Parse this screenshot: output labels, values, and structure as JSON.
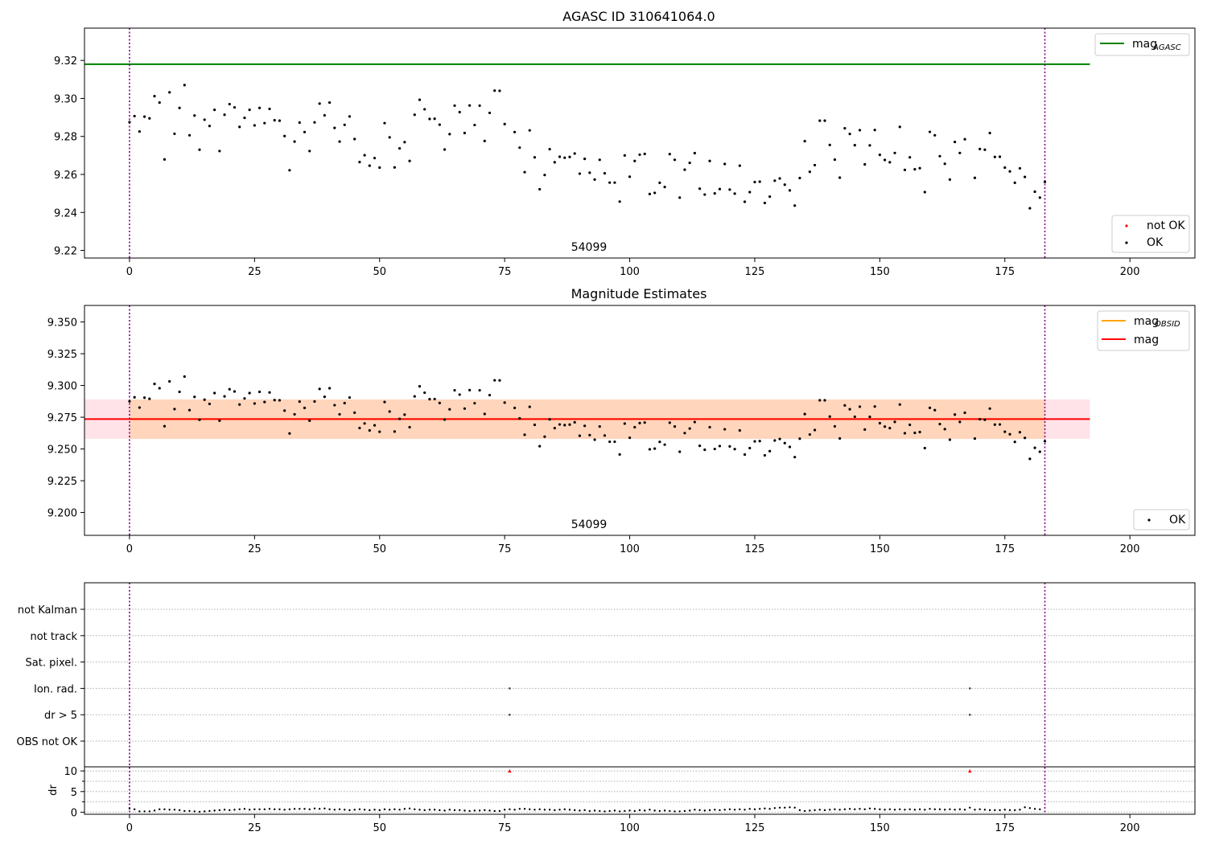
{
  "chart_data": [
    {
      "type": "scatter",
      "title": "AGASC ID 310641064.0",
      "xlim": [
        -9,
        213
      ],
      "ylim": [
        9.216,
        9.337
      ],
      "xticks": [
        0,
        25,
        50,
        75,
        100,
        125,
        150,
        175,
        200
      ],
      "yticks": [
        9.22,
        9.24,
        9.26,
        9.28,
        9.3,
        9.32
      ],
      "ytick_labels": [
        "9.22",
        "9.24",
        "9.26",
        "9.28",
        "9.30",
        "9.32"
      ],
      "grid": false,
      "annotation": "54099",
      "vlines": [
        0,
        183
      ],
      "hlines": [
        {
          "name": "mag",
          "sub": "AGASC",
          "y": 9.318,
          "x0": -9,
          "x1": 192,
          "color": "#008000"
        }
      ],
      "legend_upper": [
        {
          "label": "mag",
          "sub": "AGASC",
          "color": "#008000",
          "kind": "line"
        }
      ],
      "legend_lower": [
        {
          "label": "not OK",
          "color": "#ff0000",
          "kind": "dot"
        },
        {
          "label": "OK",
          "color": "#000000",
          "kind": "dot"
        }
      ],
      "series": [
        {
          "name": "OK",
          "color": "#000000",
          "x": "obs_x",
          "y": "obs_mag"
        }
      ]
    },
    {
      "type": "scatter",
      "title": "Magnitude Estimates",
      "xlim": [
        -9,
        213
      ],
      "ylim": [
        9.182,
        9.363
      ],
      "xticks": [
        0,
        25,
        50,
        75,
        100,
        125,
        150,
        175,
        200
      ],
      "yticks": [
        9.2,
        9.225,
        9.25,
        9.275,
        9.3,
        9.325,
        9.35
      ],
      "ytick_labels": [
        "9.200",
        "9.225",
        "9.250",
        "9.275",
        "9.300",
        "9.325",
        "9.350"
      ],
      "grid": false,
      "annotation": "54099",
      "vlines": [
        0,
        183
      ],
      "mag_line": {
        "y": 9.2735,
        "color": "#ff0000"
      },
      "mag_obsid_line": {
        "y": 9.2735,
        "color": "#ffa500"
      },
      "bands": [
        {
          "x0": -9,
          "x1": 192,
          "y0": 9.258,
          "y1": 9.289,
          "color": "#ffc0cb"
        },
        {
          "x0": 0,
          "x1": 183,
          "y0": 9.258,
          "y1": 9.289,
          "color": "#ffd2b3"
        }
      ],
      "legend_upper": [
        {
          "label": "mag",
          "sub": "OBSID",
          "color": "#ffa500",
          "kind": "line"
        },
        {
          "label": "mag",
          "sub": "",
          "color": "#ff0000",
          "kind": "line"
        }
      ],
      "legend_lower": [
        {
          "label": "OK",
          "color": "#000000",
          "kind": "dot"
        }
      ],
      "series": [
        {
          "name": "OK",
          "color": "#000000",
          "x": "obs_x",
          "y": "obs_mag"
        }
      ]
    },
    {
      "type": "scatter",
      "title": "",
      "xlim": [
        -9,
        213
      ],
      "flag_labels": [
        "not Kalman",
        "not track",
        "Sat. pixel.",
        "Ion. rad.",
        "dr > 5",
        "OBS not OK"
      ],
      "flag_points": [
        {
          "flag": "Ion. rad.",
          "x": [
            76,
            168
          ]
        },
        {
          "flag": "dr > 5",
          "x": [
            76,
            168
          ]
        }
      ],
      "dr_ylabel": "dr",
      "dr_ylim": [
        -0.5,
        11
      ],
      "dr_yticks": [
        0,
        5,
        10
      ],
      "vlines": [
        0,
        183
      ],
      "dr_outliers": {
        "x": [
          76,
          168
        ],
        "y": [
          10,
          10
        ],
        "color": "#ff0000"
      },
      "dr_values": [
        0.9,
        0.7,
        0.2,
        0.2,
        0.2,
        0.4,
        0.7,
        0.7,
        0.6,
        0.6,
        0.5,
        0.3,
        0.3,
        0.2,
        0.1,
        0.2,
        0.3,
        0.4,
        0.5,
        0.6,
        0.5,
        0.6,
        0.7,
        0.8,
        0.6,
        0.7,
        0.7,
        0.7,
        0.8,
        0.7,
        0.7,
        0.6,
        0.7,
        0.8,
        0.8,
        0.8,
        0.7,
        0.9,
        0.8,
        0.9,
        0.7,
        0.6,
        0.7,
        0.6,
        0.5,
        0.6,
        0.7,
        0.6,
        0.5,
        0.6,
        0.5,
        0.7,
        0.6,
        0.7,
        0.6,
        0.8,
        0.9,
        0.7,
        0.6,
        0.5,
        0.6,
        0.6,
        0.5,
        0.4,
        0.6,
        0.5,
        0.5,
        0.4,
        0.3,
        0.4,
        0.4,
        0.5,
        0.4,
        0.3,
        0.3,
        0.6,
        0.7,
        0.6,
        0.8,
        0.8,
        0.7,
        0.6,
        0.7,
        0.6,
        0.6,
        0.5,
        0.6,
        0.7,
        0.6,
        0.5,
        0.4,
        0.5,
        0.3,
        0.4,
        0.3,
        0.2,
        0.3,
        0.4,
        0.2,
        0.3,
        0.4,
        0.3,
        0.5,
        0.4,
        0.6,
        0.4,
        0.3,
        0.4,
        0.3,
        0.2,
        0.2,
        0.3,
        0.4,
        0.6,
        0.5,
        0.4,
        0.5,
        0.6,
        0.5,
        0.6,
        0.7,
        0.6,
        0.7,
        0.6,
        0.8,
        0.7,
        0.8,
        0.9,
        0.8,
        1.0,
        1.1,
        1.1,
        1.2,
        1.1,
        0.5,
        0.3,
        0.4,
        0.5,
        0.6,
        0.5,
        0.6,
        0.7,
        0.6,
        0.7,
        0.8,
        0.7,
        0.8,
        0.7,
        0.9,
        0.8,
        0.7,
        0.6,
        0.7,
        0.6,
        0.7,
        0.6,
        0.7,
        0.6,
        0.7,
        0.6,
        0.8,
        0.7,
        0.7,
        0.6,
        0.7,
        0.6,
        0.7,
        0.6,
        1.1,
        0.6,
        0.7,
        0.6,
        0.5,
        0.5,
        0.5,
        0.6,
        0.5,
        0.5,
        0.6,
        1.2,
        1.0,
        0.8,
        0.7
      ]
    }
  ],
  "obs_x": [
    0,
    1,
    2,
    3,
    4,
    5,
    6,
    7,
    8,
    9,
    10,
    11,
    12,
    13,
    14,
    15,
    16,
    17,
    18,
    19,
    20,
    21,
    22,
    23,
    24,
    25,
    26,
    27,
    28,
    29,
    30,
    31,
    32,
    33,
    34,
    35,
    36,
    37,
    38,
    39,
    40,
    41,
    42,
    43,
    44,
    45,
    46,
    47,
    48,
    49,
    50,
    51,
    52,
    53,
    54,
    55,
    56,
    57,
    58,
    59,
    60,
    61,
    62,
    63,
    64,
    65,
    66,
    67,
    68,
    69,
    70,
    71,
    72,
    73,
    74,
    75,
    77,
    78,
    79,
    80,
    81,
    82,
    83,
    84,
    85,
    86,
    87,
    88,
    89,
    90,
    91,
    92,
    93,
    94,
    95,
    96,
    97,
    98,
    99,
    100,
    101,
    102,
    103,
    104,
    105,
    106,
    107,
    108,
    109,
    110,
    111,
    112,
    113,
    114,
    115,
    116,
    117,
    118,
    119,
    120,
    121,
    122,
    123,
    124,
    125,
    126,
    127,
    128,
    129,
    130,
    131,
    132,
    133,
    134,
    135,
    136,
    137,
    138,
    139,
    140,
    141,
    142,
    143,
    144,
    145,
    146,
    147,
    148,
    149,
    150,
    151,
    152,
    153,
    154,
    155,
    156,
    157,
    158,
    159,
    160,
    161,
    162,
    163,
    164,
    165,
    166,
    167,
    169,
    170,
    171,
    172,
    173,
    174,
    175,
    176,
    177,
    178,
    179,
    180,
    181,
    182,
    183
  ],
  "obs_mag": [
    9.2875,
    9.2907,
    9.2826,
    9.2904,
    9.2895,
    9.3012,
    9.2978,
    9.2679,
    9.3032,
    9.2814,
    9.295,
    9.307,
    9.2806,
    9.291,
    9.273,
    9.2888,
    9.2855,
    9.294,
    9.2723,
    9.2914,
    9.297,
    9.2953,
    9.285,
    9.2898,
    9.294,
    9.2858,
    9.295,
    9.287,
    9.2945,
    9.2885,
    9.2883,
    9.2802,
    9.2622,
    9.2773,
    9.2873,
    9.2823,
    9.2723,
    9.2874,
    9.2973,
    9.2911,
    9.2978,
    9.2845,
    9.2773,
    9.2861,
    9.2905,
    9.2786,
    9.2665,
    9.2701,
    9.2646,
    9.2686,
    9.2636,
    9.287,
    9.2795,
    9.2637,
    9.2737,
    9.277,
    9.2671,
    9.2914,
    9.2993,
    9.2943,
    9.2892,
    9.2893,
    9.2862,
    9.2731,
    9.2812,
    9.2962,
    9.2928,
    9.2818,
    9.2963,
    9.286,
    9.2962,
    9.2776,
    9.2924,
    9.3041,
    9.304,
    9.2865,
    9.2823,
    9.2741,
    9.2612,
    9.2832,
    9.269,
    9.2522,
    9.2597,
    9.2733,
    9.2664,
    9.2693,
    9.2688,
    9.2692,
    9.271,
    9.2604,
    9.2682,
    9.2609,
    9.2573,
    9.2677,
    9.2606,
    9.2557,
    9.2557,
    9.2457,
    9.27,
    9.2588,
    9.2671,
    9.2704,
    9.2708,
    9.2497,
    9.2503,
    9.2556,
    9.2534,
    9.2707,
    9.2677,
    9.2478,
    9.2625,
    9.2661,
    9.2712,
    9.2525,
    9.2494,
    9.2671,
    9.25,
    9.2523,
    9.2655,
    9.252,
    9.2499,
    9.2646,
    9.2456,
    9.2507,
    9.256,
    9.2562,
    9.245,
    9.2483,
    9.2567,
    9.2579,
    9.2546,
    9.2516,
    9.2436,
    9.2581,
    9.2775,
    9.2614,
    9.2649,
    9.2883,
    9.2883,
    9.2755,
    9.2678,
    9.2583,
    9.2843,
    9.2813,
    9.2754,
    9.2833,
    9.2653,
    9.2753,
    9.2834,
    9.2703,
    9.2676,
    9.2664,
    9.2713,
    9.285,
    9.2624,
    9.269,
    9.2627,
    9.2633,
    9.2507,
    9.2824,
    9.2806,
    9.2696,
    9.2656,
    9.2573,
    9.2771,
    9.2713,
    9.2785,
    9.2582,
    9.2734,
    9.273,
    9.2818,
    9.2692,
    9.2693,
    9.2636,
    9.2616,
    9.2556,
    9.2632,
    9.2587,
    9.2422,
    9.2509,
    9.2478,
    9.2561
  ]
}
